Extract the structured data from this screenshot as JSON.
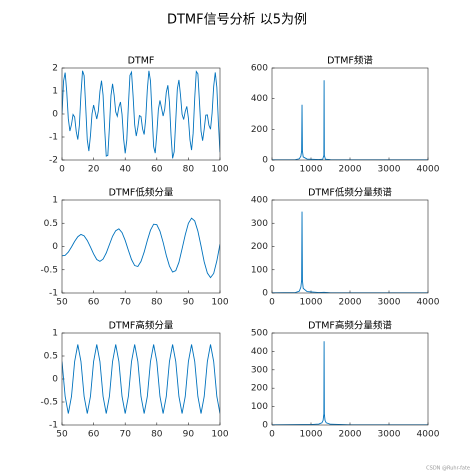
{
  "title": "DTMF信号分析 以5为例",
  "watermark": "CSDN @Ruhr-fate",
  "chart_data": [
    {
      "type": "line",
      "title": "DTMF",
      "color": "#0072bd",
      "x": [
        0,
        1,
        2,
        3,
        4,
        5,
        6,
        7,
        8,
        9,
        10,
        11,
        12,
        13,
        14,
        15,
        16,
        17,
        18,
        19,
        20,
        21,
        22,
        23,
        24,
        25,
        26,
        27,
        28,
        29,
        30,
        31,
        32,
        33,
        34,
        35,
        36,
        37,
        38,
        39,
        40,
        41,
        42,
        43,
        44,
        45,
        46,
        47,
        48,
        49,
        50,
        51,
        52,
        53,
        54,
        55,
        56,
        57,
        58,
        59,
        60,
        61,
        62,
        63,
        64,
        65,
        66,
        67,
        68,
        69,
        70,
        71,
        72,
        73,
        74,
        75,
        76,
        77,
        78,
        79,
        80,
        81,
        82,
        83,
        84,
        85,
        86,
        87,
        88,
        89,
        90,
        91,
        92,
        93,
        94,
        95,
        96,
        97,
        98,
        99,
        100
      ],
      "values": [
        0,
        1.44,
        1.8,
        0.96,
        -0.21,
        -0.74,
        -0.46,
        -0.02,
        -0.13,
        -0.76,
        -1.11,
        -0.49,
        0.86,
        1.88,
        1.67,
        0.32,
        -1.13,
        -1.61,
        -0.95,
        0.01,
        0.39,
        0.09,
        -0.22,
        0.13,
        0.98,
        1.45,
        0.82,
        -0.64,
        -1.83,
        -1.8,
        -0.59,
        0.8,
        1.31,
        0.82,
        0.09,
        -0.1,
        0.3,
        0.52,
        -0.02,
        -1.08,
        -1.71,
        -1.14,
        0.35,
        1.68,
        1.82,
        0.78,
        -0.47,
        -0.96,
        -0.58,
        -0.07,
        -0.11,
        -0.65,
        -0.89,
        -0.21,
        1.06,
        1.88,
        1.44,
        -0.03,
        -1.42,
        -1.7,
        -0.86,
        0.2,
        0.59,
        0.26,
        -0.09,
        0.21,
        0.94,
        1.25,
        0.51,
        -0.92,
        -1.93,
        -1.64,
        -0.28,
        1.09,
        1.48,
        0.82,
        -0.01,
        -0.24,
        0.11,
        0.33,
        -0.18,
        -1.13,
        -1.57,
        -0.84,
        0.69,
        1.85,
        1.75,
        0.53,
        -0.75,
        -1.16,
        -0.66,
        -0.05,
        -0.04,
        -0.49,
        -0.66,
        0.04,
        1.2,
        1.81,
        1.16,
        -0.39,
        -1.66
      ],
      "xlim": [
        0,
        100
      ],
      "xticks": [
        0,
        20,
        40,
        60,
        80,
        100
      ],
      "ylim": [
        -2,
        2
      ],
      "yticks": [
        -2,
        -1,
        0,
        1,
        2
      ]
    },
    {
      "type": "line",
      "title": "DTMF频谱",
      "color": "#0072bd",
      "x": [
        0,
        600,
        700,
        740,
        760,
        770,
        780,
        800,
        900,
        1200,
        1300,
        1330,
        1336,
        1342,
        1370,
        1500,
        2000,
        3000,
        4000
      ],
      "values": [
        1,
        2,
        8,
        25,
        60,
        360,
        60,
        20,
        6,
        3,
        5,
        30,
        520,
        30,
        5,
        2,
        1,
        1,
        1
      ],
      "xlim": [
        0,
        4000
      ],
      "xticks": [
        0,
        1000,
        2000,
        3000,
        4000
      ],
      "ylim": [
        0,
        600
      ],
      "yticks": [
        0,
        200,
        400,
        600
      ]
    },
    {
      "type": "line",
      "title": "DTMF低频分量",
      "color": "#0072bd",
      "x": [
        50,
        51,
        52,
        53,
        54,
        55,
        56,
        57,
        58,
        59,
        60,
        61,
        62,
        63,
        64,
        65,
        66,
        67,
        68,
        69,
        70,
        71,
        72,
        73,
        74,
        75,
        76,
        77,
        78,
        79,
        80,
        81,
        82,
        83,
        84,
        85,
        86,
        87,
        88,
        89,
        90,
        91,
        92,
        93,
        94,
        95,
        96,
        97,
        98,
        99,
        100
      ],
      "values": [
        -0.2,
        -0.19,
        -0.12,
        -0.01,
        0.11,
        0.21,
        0.26,
        0.23,
        0.13,
        -0.01,
        -0.16,
        -0.28,
        -0.32,
        -0.27,
        -0.14,
        0.04,
        0.22,
        0.34,
        0.38,
        0.3,
        0.13,
        -0.08,
        -0.28,
        -0.41,
        -0.43,
        -0.32,
        -0.12,
        0.13,
        0.35,
        0.48,
        0.47,
        0.33,
        0.09,
        -0.19,
        -0.42,
        -0.55,
        -0.52,
        -0.34,
        -0.05,
        0.25,
        0.5,
        0.61,
        0.55,
        0.33,
        0.01,
        -0.33,
        -0.57,
        -0.67,
        -0.58,
        -0.31,
        0.05
      ],
      "xlim": [
        50,
        100
      ],
      "xticks": [
        50,
        60,
        70,
        80,
        90,
        100
      ],
      "ylim": [
        -1,
        1
      ],
      "yticks": [
        -1,
        -0.5,
        0,
        0.5,
        1
      ]
    },
    {
      "type": "line",
      "title": "DTMF低频分量频谱",
      "color": "#0072bd",
      "x": [
        0,
        600,
        700,
        740,
        760,
        770,
        780,
        800,
        900,
        1200,
        1336,
        1500,
        2000,
        3000,
        4000
      ],
      "values": [
        1,
        2,
        8,
        25,
        55,
        350,
        55,
        20,
        6,
        2,
        3,
        1,
        1,
        1,
        1
      ],
      "xlim": [
        0,
        4000
      ],
      "xticks": [
        0,
        1000,
        2000,
        3000,
        4000
      ],
      "ylim": [
        0,
        400
      ],
      "yticks": [
        0,
        100,
        200,
        300,
        400
      ]
    },
    {
      "type": "line",
      "title": "DTMF高频分量",
      "color": "#0072bd",
      "x": [
        50,
        51,
        52,
        53,
        54,
        55,
        56,
        57,
        58,
        59,
        60,
        61,
        62,
        63,
        64,
        65,
        66,
        67,
        68,
        69,
        70,
        71,
        72,
        73,
        74,
        75,
        76,
        77,
        78,
        79,
        80,
        81,
        82,
        83,
        84,
        85,
        86,
        87,
        88,
        89,
        90,
        91,
        92,
        93,
        94,
        95,
        96,
        97,
        98,
        99,
        100
      ],
      "values": [
        0.38,
        -0.38,
        -0.75,
        -0.38,
        0.38,
        0.75,
        0.38,
        -0.38,
        -0.75,
        -0.38,
        0.38,
        0.75,
        0.38,
        -0.38,
        -0.75,
        -0.38,
        0.38,
        0.75,
        0.38,
        -0.38,
        -0.75,
        -0.38,
        0.38,
        0.75,
        0.38,
        -0.38,
        -0.75,
        -0.38,
        0.38,
        0.75,
        0.38,
        -0.38,
        -0.75,
        -0.38,
        0.38,
        0.75,
        0.38,
        -0.38,
        -0.75,
        -0.38,
        0.38,
        0.75,
        0.38,
        -0.38,
        -0.75,
        -0.38,
        0.38,
        0.75,
        0.38,
        -0.38,
        -0.75
      ],
      "xlim": [
        50,
        100
      ],
      "xticks": [
        50,
        60,
        70,
        80,
        90,
        100
      ],
      "ylim": [
        -1,
        1
      ],
      "yticks": [
        -1,
        -0.5,
        0,
        0.5,
        1
      ]
    },
    {
      "type": "line",
      "title": "DTMF高频分量频谱",
      "color": "#0072bd",
      "x": [
        0,
        770,
        1000,
        1200,
        1280,
        1310,
        1330,
        1336,
        1342,
        1360,
        1390,
        1500,
        2000,
        3000,
        4000
      ],
      "values": [
        1,
        2,
        2,
        5,
        12,
        25,
        60,
        455,
        60,
        25,
        12,
        4,
        1,
        1,
        1
      ],
      "xlim": [
        0,
        4000
      ],
      "xticks": [
        0,
        1000,
        2000,
        3000,
        4000
      ],
      "ylim": [
        0,
        500
      ],
      "yticks": [
        0,
        100,
        200,
        300,
        400,
        500
      ]
    }
  ]
}
